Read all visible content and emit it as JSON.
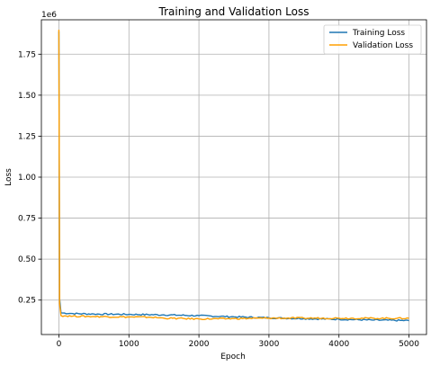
{
  "chart_data": {
    "type": "line",
    "title": "Training and Validation Loss",
    "xlabel": "Epoch",
    "ylabel": "Loss",
    "y_multiplier": "1e6",
    "xlim": [
      -250,
      5250
    ],
    "ylim": [
      40000,
      1960000
    ],
    "x_ticks": [
      0,
      1000,
      2000,
      3000,
      4000,
      5000
    ],
    "x_tick_labels": [
      "0",
      "1000",
      "2000",
      "3000",
      "4000",
      "5000"
    ],
    "y_ticks": [
      250000,
      500000,
      750000,
      1000000,
      1250000,
      1500000,
      1750000
    ],
    "y_tick_labels": [
      "0.25",
      "0.50",
      "0.75",
      "1.00",
      "1.25",
      "1.50",
      "1.75"
    ],
    "grid": true,
    "legend_position": "top-right",
    "series": [
      {
        "name": "Training Loss",
        "color": "#1f77b4",
        "x": [
          0,
          10,
          30,
          200,
          500,
          1000,
          1500,
          2000,
          2500,
          3000,
          3500,
          4000,
          4500,
          5000
        ],
        "y": [
          1890000,
          260000,
          172000,
          168000,
          165000,
          163000,
          160000,
          155000,
          148000,
          142000,
          137000,
          133000,
          128000,
          125000
        ]
      },
      {
        "name": "Validation Loss",
        "color": "#ff9f00",
        "x": [
          0,
          10,
          30,
          200,
          500,
          1000,
          1300,
          1500,
          2000,
          2500,
          3000,
          3500,
          4000,
          4500,
          5000
        ],
        "y": [
          1900000,
          230000,
          155000,
          152000,
          150000,
          147000,
          146000,
          140000,
          135000,
          137000,
          140000,
          140000,
          140000,
          139000,
          139000
        ]
      }
    ]
  }
}
